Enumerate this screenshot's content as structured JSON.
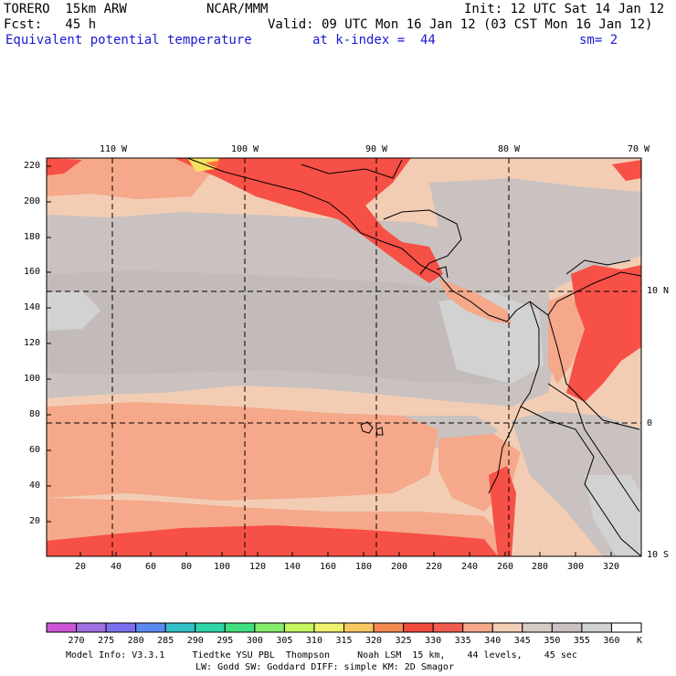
{
  "header": {
    "line1_left": "TORERO  15km ARW",
    "line1_center": "NCAR/MMM",
    "line1_right": "Init: 12 UTC Sat 14 Jan 12",
    "line2_left": "Fcst:   45 h",
    "line2_right": "Valid: 09 UTC Mon 16 Jan 12 (03 CST Mon 16 Jan 12)",
    "line3_field": "Equivalent potential temperature",
    "line3_level": "at k-index =  44",
    "line3_smooth": "sm= 2"
  },
  "map": {
    "top_lon_labels": [
      "110 W",
      "100 W",
      "90 W",
      "80 W",
      "70 W"
    ],
    "right_lat_labels": [
      "10 N",
      "0",
      "10 S"
    ],
    "x_ticks": [
      "20",
      "40",
      "60",
      "80",
      "100",
      "120",
      "140",
      "160",
      "180",
      "200",
      "220",
      "240",
      "260",
      "280",
      "300",
      "320"
    ],
    "y_ticks": [
      "220",
      "200",
      "180",
      "160",
      "140",
      "120",
      "100",
      "80",
      "60",
      "40",
      "20"
    ],
    "colors": {
      "red": "#f75046",
      "salmon": "#f5a88a",
      "peach": "#f2cdb4",
      "gray": "#c9c2c0",
      "lightgray": "#d2d2d2",
      "orange_red": "#ff6a40",
      "yellow": "#f7e25e"
    }
  },
  "colorbar": {
    "labels": [
      "270",
      "275",
      "280",
      "285",
      "290",
      "295",
      "300",
      "305",
      "310",
      "315",
      "320",
      "325",
      "330",
      "335",
      "340",
      "345",
      "350",
      "355",
      "360"
    ],
    "unit": "K",
    "colors": [
      "#cc55d6",
      "#a06ee0",
      "#7b6ff0",
      "#5a8af0",
      "#30c0c8",
      "#2fd6a8",
      "#40e080",
      "#84ec6a",
      "#c4f460",
      "#f0f070",
      "#f6c860",
      "#f48a52",
      "#ef4a3e",
      "#f25c50",
      "#f5a88a",
      "#f2cdb4",
      "#d8ccc6",
      "#c9c2c0",
      "#d2d2d2",
      "#ffffff"
    ]
  },
  "footer": {
    "line1": "Model Info: V3.3.1     Tiedtke YSU PBL  Thompson     Noah LSM  15 km,    44 levels,    45 sec",
    "line2": "LW: Godd SW: Goddard DIFF: simple KM: 2D Smagor"
  }
}
